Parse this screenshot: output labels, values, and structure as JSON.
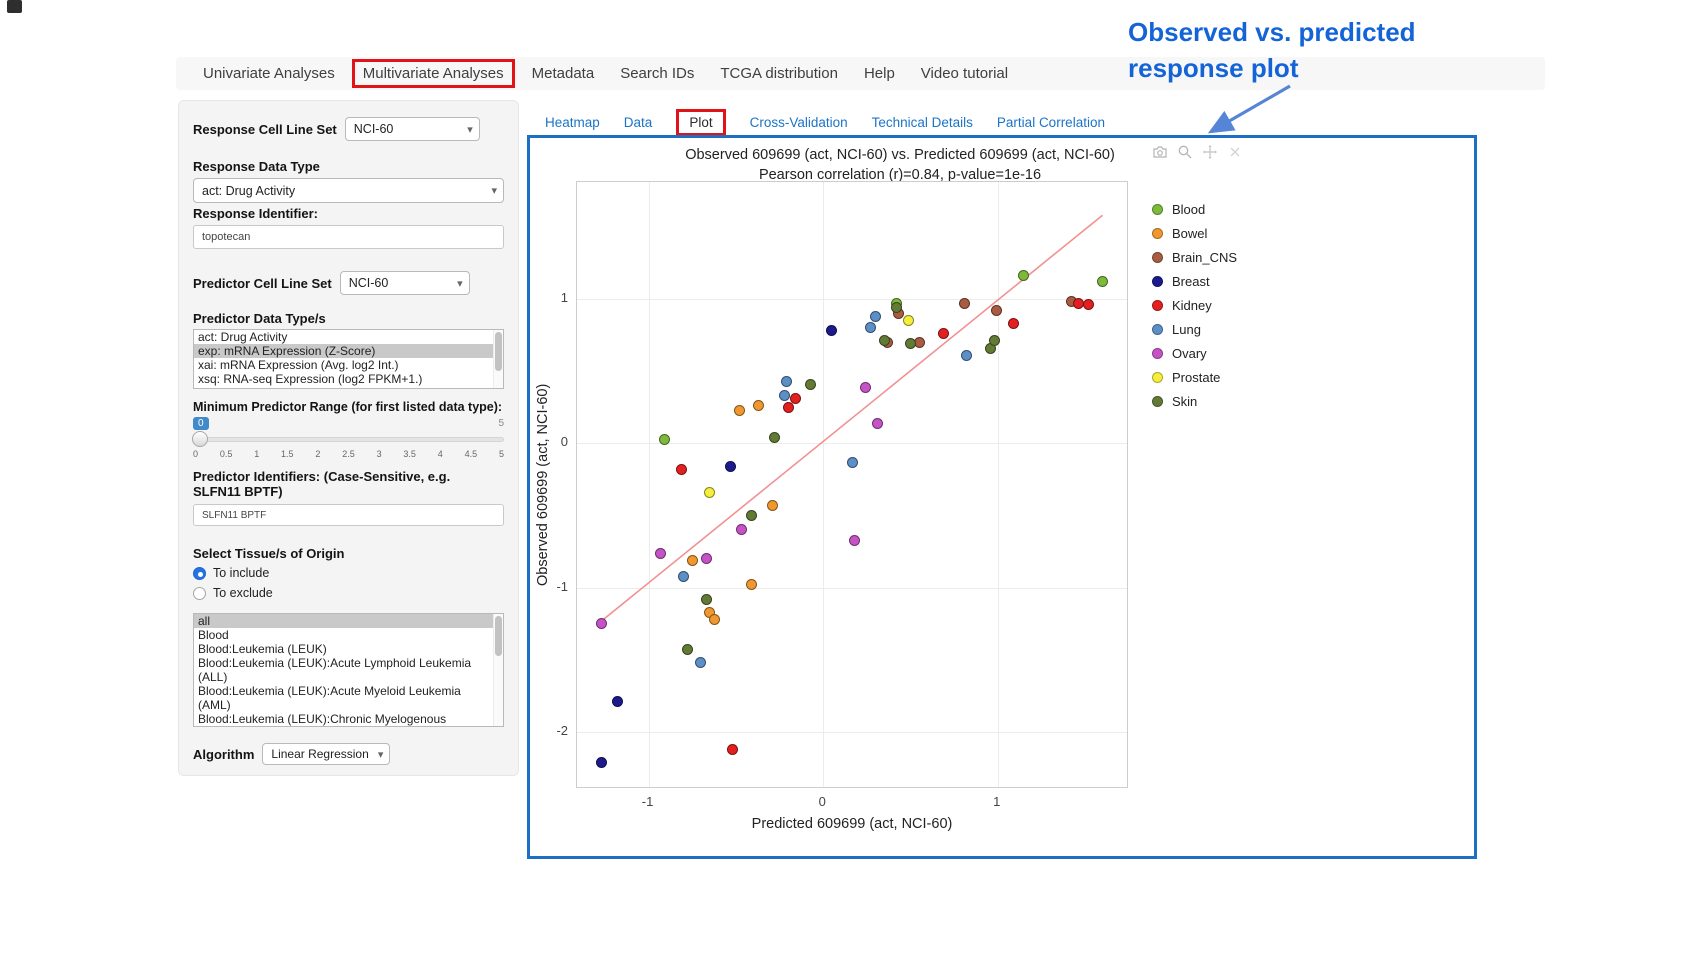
{
  "annotation": {
    "line1": "Observed  vs. predicted",
    "line2": "response plot"
  },
  "nav": {
    "items": [
      "Univariate Analyses",
      "Multivariate Analyses",
      "Metadata",
      "Search IDs",
      "TCGA distribution",
      "Help",
      "Video tutorial"
    ]
  },
  "tabs": [
    "Heatmap",
    "Data",
    "Plot",
    "Cross-Validation",
    "Technical Details",
    "Partial Correlation"
  ],
  "sidebar": {
    "response_cell_line_set": {
      "label": "Response Cell Line Set",
      "value": "NCI-60"
    },
    "response_data_type": {
      "label": "Response Data Type",
      "value": "act: Drug Activity"
    },
    "response_identifier": {
      "label": "Response Identifier:",
      "value": "topotecan"
    },
    "predictor_cell_line_set": {
      "label": "Predictor Cell Line Set",
      "value": "NCI-60"
    },
    "predictor_data_types": {
      "label": "Predictor Data Type/s",
      "options": [
        {
          "label": "act: Drug Activity",
          "selected": false
        },
        {
          "label": "exp: mRNA Expression (Z-Score)",
          "selected": true
        },
        {
          "label": "xai: mRNA Expression (Avg. log2 Int.)",
          "selected": false
        },
        {
          "label": "xsq: RNA-seq Expression (log2 FPKM+1.)",
          "selected": false
        }
      ]
    },
    "min_predictor_range": {
      "label": "Minimum Predictor Range (for first listed data type):",
      "value": "0",
      "max_label": "5",
      "scale": [
        "0",
        "0.5",
        "1",
        "1.5",
        "2",
        "2.5",
        "3",
        "3.5",
        "4",
        "4.5",
        "5"
      ]
    },
    "predictor_identifiers": {
      "label": "Predictor Identifiers: (Case-Sensitive, e.g. SLFN11 BPTF)",
      "value": "SLFN11 BPTF"
    },
    "tissue_origin": {
      "label": "Select Tissue/s of Origin",
      "radios": [
        {
          "label": "To include",
          "checked": true
        },
        {
          "label": "To exclude",
          "checked": false
        }
      ]
    },
    "tissue_options": {
      "options": [
        {
          "label": "all",
          "selected": true
        },
        {
          "label": "Blood",
          "selected": false
        },
        {
          "label": "Blood:Leukemia (LEUK)",
          "selected": false
        },
        {
          "label": "Blood:Leukemia (LEUK):Acute Lymphoid Leukemia (ALL)",
          "selected": false
        },
        {
          "label": "Blood:Leukemia (LEUK):Acute Myeloid Leukemia (AML)",
          "selected": false
        },
        {
          "label": "Blood:Leukemia (LEUK):Chronic Myelogenous Leukemia (CML)",
          "selected": false
        }
      ]
    },
    "algorithm": {
      "label": "Algorithm",
      "value": "Linear Regression"
    }
  },
  "modebar_icons": [
    "camera-icon",
    "zoom-icon",
    "pan-icon",
    "close-icon"
  ],
  "chart_data": {
    "type": "scatter",
    "title_line1": "Observed 609699 (act, NCI-60) vs. Predicted 609699 (act, NCI-60)",
    "title_line2": "Pearson correlation (r)=0.84, p-value=1e-16",
    "xlabel": "Predicted 609699 (act, NCI-60)",
    "ylabel": "Observed 609699 (act, NCI-60)",
    "xlim": [
      -1.41,
      1.74
    ],
    "ylim": [
      -2.38,
      1.81
    ],
    "xticks": [
      -1,
      0,
      1
    ],
    "yticks": [
      -2,
      -1,
      0,
      1
    ],
    "grid": true,
    "legend_position": "right",
    "trend_line": {
      "x": [
        -1.3,
        1.6
      ],
      "y": [
        -1.26,
        1.58
      ],
      "color": "#f29191"
    },
    "series": [
      {
        "name": "Blood",
        "color": "#7db93b",
        "points": [
          [
            -0.91,
            0.03
          ],
          [
            0.42,
            0.97
          ],
          [
            1.15,
            1.16
          ],
          [
            1.6,
            1.12
          ]
        ]
      },
      {
        "name": "Bowel",
        "color": "#f0982f",
        "points": [
          [
            -0.75,
            -0.81
          ],
          [
            -0.65,
            -1.17
          ],
          [
            -0.62,
            -1.22
          ],
          [
            -0.48,
            0.23
          ],
          [
            -0.41,
            -0.98
          ],
          [
            -0.37,
            0.26
          ],
          [
            -0.29,
            -0.43
          ]
        ]
      },
      {
        "name": "Brain_CNS",
        "color": "#a85c42",
        "points": [
          [
            0.37,
            0.7
          ],
          [
            0.43,
            0.9
          ],
          [
            0.55,
            0.7
          ],
          [
            0.81,
            0.97
          ],
          [
            0.99,
            0.92
          ],
          [
            1.42,
            0.98
          ]
        ]
      },
      {
        "name": "Breast",
        "color": "#1d1b8c",
        "points": [
          [
            -1.27,
            -2.21
          ],
          [
            -1.18,
            -1.79
          ],
          [
            -0.53,
            -0.16
          ],
          [
            0.05,
            0.78
          ]
        ]
      },
      {
        "name": "Kidney",
        "color": "#e32020",
        "points": [
          [
            -0.81,
            -0.18
          ],
          [
            -0.52,
            -2.12
          ],
          [
            -0.2,
            0.25
          ],
          [
            -0.16,
            0.31
          ],
          [
            0.69,
            0.76
          ],
          [
            1.09,
            0.83
          ],
          [
            1.46,
            0.97
          ],
          [
            1.52,
            0.96
          ]
        ]
      },
      {
        "name": "Lung",
        "color": "#5b8fc6",
        "points": [
          [
            -0.8,
            -0.92
          ],
          [
            -0.7,
            -1.52
          ],
          [
            -0.22,
            0.33
          ],
          [
            -0.21,
            0.43
          ],
          [
            0.17,
            -0.13
          ],
          [
            0.27,
            0.8
          ],
          [
            0.3,
            0.88
          ],
          [
            0.82,
            0.61
          ]
        ]
      },
      {
        "name": "Ovary",
        "color": "#c653c6",
        "points": [
          [
            -1.27,
            -1.25
          ],
          [
            -0.93,
            -0.76
          ],
          [
            -0.67,
            -0.8
          ],
          [
            -0.47,
            -0.6
          ],
          [
            0.18,
            -0.67
          ],
          [
            0.24,
            0.39
          ],
          [
            0.31,
            0.14
          ]
        ]
      },
      {
        "name": "Prostate",
        "color": "#f4ef3d",
        "points": [
          [
            -0.65,
            -0.34
          ],
          [
            0.49,
            0.85
          ]
        ]
      },
      {
        "name": "Skin",
        "color": "#637a35",
        "points": [
          [
            -0.78,
            -1.43
          ],
          [
            -0.67,
            -1.08
          ],
          [
            -0.41,
            -0.5
          ],
          [
            -0.28,
            0.04
          ],
          [
            -0.07,
            0.41
          ],
          [
            0.35,
            0.71
          ],
          [
            0.42,
            0.94
          ],
          [
            0.5,
            0.69
          ],
          [
            0.96,
            0.66
          ],
          [
            0.98,
            0.71
          ]
        ]
      }
    ]
  }
}
